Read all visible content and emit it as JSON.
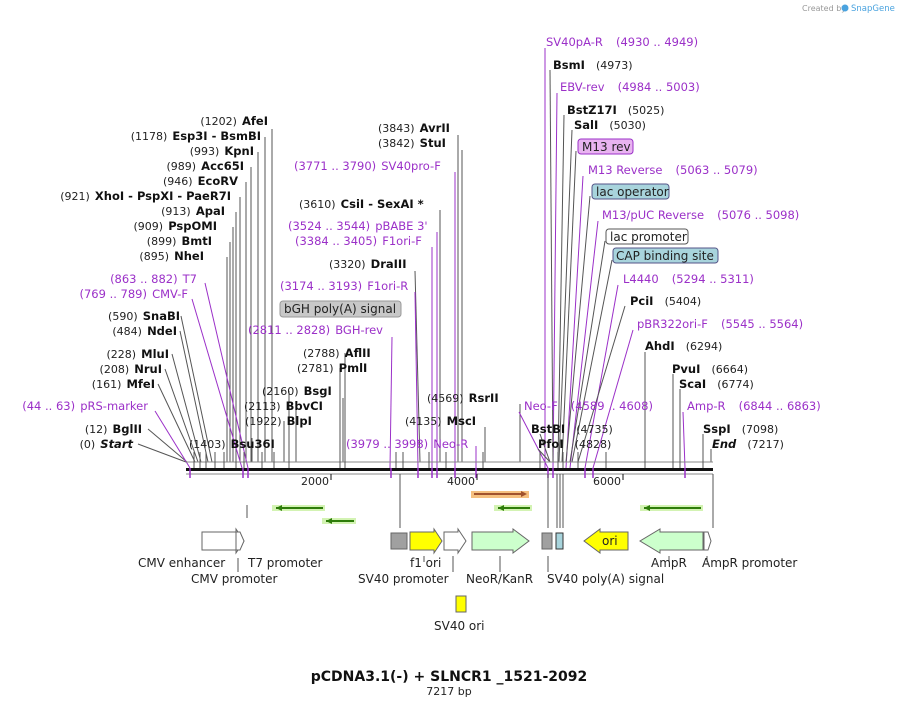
{
  "credit": "Created by",
  "brand": "SnapGene",
  "title": "pCDNA3.1(-) + SLNCR1 _1521-2092",
  "subtitle": "7217 bp",
  "axis_ticks": [
    "2000",
    "4000",
    "6000"
  ],
  "sites_left": [
    {
      "num": "(1202)",
      "name": "AfeI"
    },
    {
      "num": "(1178)",
      "name": "Esp3I",
      "extra": "BsmBI"
    },
    {
      "num": "(993)",
      "name": "KpnI"
    },
    {
      "num": "(989)",
      "name": "Acc65I"
    },
    {
      "num": "(946)",
      "name": "EcoRV"
    },
    {
      "num": "(921)",
      "name": "XhoI",
      "extra": "PspXI",
      "extra2": "PaeR7I"
    },
    {
      "num": "(913)",
      "name": "ApaI"
    },
    {
      "num": "(909)",
      "name": "PspOMI"
    },
    {
      "num": "(899)",
      "name": "BmtI"
    },
    {
      "num": "(895)",
      "name": "NheI"
    },
    {
      "num": "(590)",
      "name": "SnaBI"
    },
    {
      "num": "(484)",
      "name": "NdeI"
    },
    {
      "num": "(228)",
      "name": "MluI"
    },
    {
      "num": "(208)",
      "name": "NruI"
    },
    {
      "num": "(161)",
      "name": "MfeI"
    },
    {
      "num": "(12)",
      "name": "BglII"
    },
    {
      "num": "(0)",
      "name": "Start"
    }
  ],
  "primers_left": [
    {
      "num": "(863 .. 882)",
      "name": "T7"
    },
    {
      "num": "(769 .. 789)",
      "name": "CMV-F"
    },
    {
      "num": "(44 .. 63)",
      "name": "pRS-marker"
    }
  ],
  "sites_mid": [
    {
      "num": "(1403)",
      "name": "Bsu36I"
    },
    {
      "num": "(2160)",
      "name": "BsgI"
    },
    {
      "num": "(2113)",
      "name": "BbvCI"
    },
    {
      "num": "(1922)",
      "name": "BlpI"
    },
    {
      "num": "(2788)",
      "name": "AflII"
    },
    {
      "num": "(2781)",
      "name": "PmlI"
    },
    {
      "num": "(3320)",
      "name": "DraIII"
    },
    {
      "num": "(3610)",
      "name": "CsiI",
      "extra": "SexAI *"
    },
    {
      "num": "(3843)",
      "name": "AvrII"
    },
    {
      "num": "(3842)",
      "name": "StuI"
    },
    {
      "num": "(4569)",
      "name": "RsrII"
    },
    {
      "num": "(4135)",
      "name": "MscI"
    }
  ],
  "primers_mid": [
    {
      "num": "(2811 .. 2828)",
      "name": "BGH-rev"
    },
    {
      "num": "(3174 .. 3193)",
      "name": "F1ori-R"
    },
    {
      "num": "(3384 .. 3405)",
      "name": "F1ori-F"
    },
    {
      "num": "(3524 .. 3544)",
      "name": "pBABE 3'"
    },
    {
      "num": "(3771 .. 3790)",
      "name": "SV40pro-F"
    },
    {
      "num": "(3979 .. 3998)",
      "name": "Neo-R"
    }
  ],
  "boxed_mid": [
    "bGH poly(A) signal"
  ],
  "sites_right": [
    {
      "name": "BsmI",
      "num": "(4973)"
    },
    {
      "name": "BstZ17I",
      "num": "(5025)"
    },
    {
      "name": "SalI",
      "num": "(5030)"
    },
    {
      "name": "PciI",
      "num": "(5404)"
    },
    {
      "name": "AhdI",
      "num": "(6294)"
    },
    {
      "name": "PvuI",
      "num": "(6664)"
    },
    {
      "name": "ScaI",
      "num": "(6774)"
    },
    {
      "name": "SspI",
      "num": "(7098)"
    },
    {
      "name": "End",
      "num": "(7217)"
    },
    {
      "name": "BstBI",
      "num": "(4735)"
    },
    {
      "name": "PfoI",
      "num": "(4828)"
    }
  ],
  "primers_right": [
    {
      "name": "SV40pA-R",
      "num": "(4930 .. 4949)"
    },
    {
      "name": "EBV-rev",
      "num": "(4984 .. 5003)"
    },
    {
      "name": "M13 Reverse",
      "num": "(5063 .. 5079)"
    },
    {
      "name": "M13/pUC Reverse",
      "num": "(5076 .. 5098)"
    },
    {
      "name": "L4440",
      "num": "(5294 .. 5311)"
    },
    {
      "name": "pBR322ori-F",
      "num": "(5545 .. 5564)"
    },
    {
      "name": "Amp-R",
      "num": "(6844 .. 6863)"
    },
    {
      "name": "Neo-F",
      "num": "(4589 .. 4608)"
    }
  ],
  "boxed_right": [
    "M13 rev",
    "lac operator",
    "lac promoter",
    "CAP binding site"
  ],
  "features": {
    "cmv_enhancer": "CMV enhancer",
    "cmv_promoter": "CMV promoter",
    "t7_promoter": "T7 promoter",
    "f1_ori": "f1 ori",
    "sv40_promoter": "SV40 promoter",
    "neor": "NeoR/KanR",
    "sv40_polya": "SV40 poly(A) signal",
    "ori": "ori",
    "ampr": "AmpR",
    "ampr_promoter": "AmpR promoter",
    "sv40_ori": "SV40 ori"
  },
  "colors": {
    "primer": "#9b30c8",
    "ori_fill": "#ffff00",
    "cds_fill": "#ccffcc",
    "primer_arrow": "#2e7d0a",
    "lac_box": "#a8d4dc",
    "m13_box": "#e8b4f0",
    "bgh_box": "#c8c8c8"
  }
}
